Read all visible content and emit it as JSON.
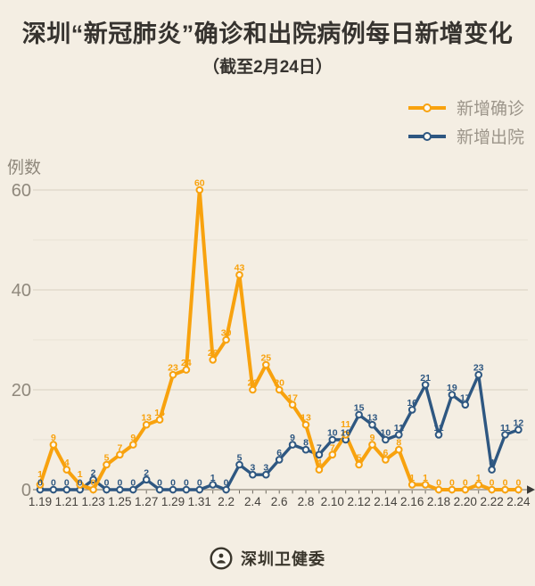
{
  "title": "深圳“新冠肺炎”确诊和出院病例每日新增变化",
  "subtitle": "（截至2月24日）",
  "y_axis_label": "例数",
  "footer": {
    "org": "深圳卫健委",
    "logo_icon": "seal-icon"
  },
  "legend": [
    {
      "label": "新增确诊",
      "color": "#F8A20E"
    },
    {
      "label": "新增出院",
      "color": "#2E5781"
    }
  ],
  "colors": {
    "background": "#F4EEE3",
    "confirmed": "#F8A20E",
    "discharged": "#2E5781",
    "grid_major": "#DDD6C7",
    "grid_minor": "#E9E3D6",
    "axis_line": "#A19A8E",
    "axis_arrow": "#3A3A38",
    "tick": "#6E6960",
    "date_label": "#45423D",
    "y_label": "#8F887C",
    "marker_fill": "#FCF9F2"
  },
  "chart_data": {
    "type": "line",
    "title": "深圳“新冠肺炎”确诊和出院病例每日新增变化",
    "subtitle": "（截至2月24日）",
    "ylabel": "例数",
    "xlabel": "",
    "ylim": [
      0,
      65
    ],
    "grid": true,
    "legend_position": "top-right",
    "yticks": [
      0,
      20,
      40,
      60
    ],
    "minor_gridlines": [
      10,
      30,
      50
    ],
    "xtick_label_every": 2,
    "categories": [
      "1.19",
      "1.20",
      "1.21",
      "1.22",
      "1.23",
      "1.24",
      "1.25",
      "1.26",
      "1.27",
      "1.28",
      "1.29",
      "1.30",
      "1.31",
      "2.1",
      "2.2",
      "2.3",
      "2.4",
      "2.5",
      "2.6",
      "2.7",
      "2.8",
      "2.9",
      "2.10",
      "2.11",
      "2.12",
      "2.13",
      "2.14",
      "2.15",
      "2.16",
      "2.17",
      "2.18",
      "2.19",
      "2.20",
      "2.21",
      "2.22",
      "2.23",
      "2.24"
    ],
    "series": [
      {
        "name": "新增确诊",
        "color": "#F8A20E",
        "values": [
          1,
          9,
          4,
          1,
          0,
          5,
          7,
          9,
          13,
          14,
          23,
          24,
          60,
          26,
          30,
          43,
          20,
          25,
          20,
          17,
          13,
          4,
          7,
          11,
          5,
          9,
          6,
          8,
          1,
          1,
          0,
          0,
          0,
          1,
          0,
          0,
          0
        ]
      },
      {
        "name": "新增出院",
        "color": "#2E5781",
        "values": [
          0,
          0,
          0,
          0,
          2,
          0,
          0,
          0,
          2,
          0,
          0,
          0,
          0,
          1,
          0,
          5,
          3,
          3,
          6,
          9,
          8,
          7,
          10,
          10,
          15,
          13,
          10,
          11,
          16,
          21,
          11,
          19,
          17,
          23,
          4,
          11,
          12
        ]
      }
    ]
  }
}
